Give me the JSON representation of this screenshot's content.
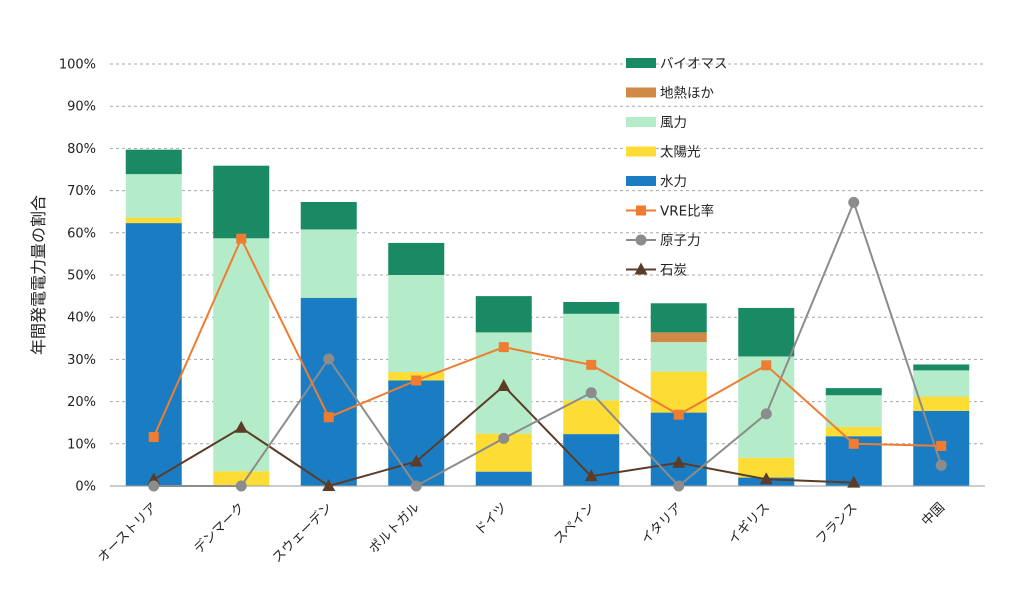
{
  "chart_data": {
    "type": "bar",
    "stacked": true,
    "ylabel": "年間発電電力量の割合",
    "ylim": [
      0,
      100
    ],
    "ytick_labels": [
      "0%",
      "10%",
      "20%",
      "30%",
      "40%",
      "50%",
      "60%",
      "70%",
      "80%",
      "90%",
      "100%"
    ],
    "grid": true,
    "legend_position": "top-right",
    "categories": [
      "オーストリア",
      "デンマーク",
      "スウェーデン",
      "ポルトガル",
      "ドイツ",
      "スペイン",
      "イタリア",
      "イギリス",
      "フランス",
      "中国"
    ],
    "bar_series": [
      {
        "name": "水力",
        "color": "#1a7dc4",
        "values": [
          62.3,
          0.0,
          44.6,
          25.0,
          3.4,
          12.3,
          17.4,
          2.0,
          11.8,
          17.8
        ]
      },
      {
        "name": "太陽光",
        "color": "#fddc35",
        "values": [
          1.3,
          3.5,
          0.0,
          2.0,
          9.0,
          8.0,
          9.7,
          4.7,
          2.2,
          3.4
        ]
      },
      {
        "name": "風力",
        "color": "#b4ebc8",
        "values": [
          10.3,
          55.2,
          16.2,
          23.0,
          24.0,
          20.5,
          7.0,
          24.0,
          7.5,
          6.2
        ]
      },
      {
        "name": "地熱ほか",
        "color": "#d18a45",
        "values": [
          0.0,
          0.0,
          0.0,
          0.0,
          0.0,
          0.0,
          2.3,
          0.0,
          0.0,
          0.0
        ]
      },
      {
        "name": "バイオマス",
        "color": "#1a8a64",
        "values": [
          5.8,
          17.2,
          6.5,
          7.6,
          8.6,
          2.8,
          6.9,
          11.5,
          1.7,
          1.4
        ]
      }
    ],
    "line_series": [
      {
        "name": "VRE比率",
        "color": "#ee7d31",
        "marker": "square",
        "values": [
          11.6,
          58.6,
          16.3,
          25.0,
          32.9,
          28.7,
          16.9,
          28.6,
          10.0,
          9.5
        ]
      },
      {
        "name": "原子力",
        "color": "#8c8c8c",
        "marker": "circle",
        "values": [
          0.0,
          0.0,
          30.1,
          0.0,
          11.3,
          22.1,
          0.0,
          17.1,
          67.2,
          4.9
        ]
      },
      {
        "name": "石炭",
        "color": "#5c3c28",
        "marker": "triangle",
        "values": [
          1.5,
          13.8,
          0.0,
          5.8,
          23.7,
          2.3,
          5.5,
          1.6,
          0.8,
          null
        ]
      }
    ],
    "legend": [
      {
        "name": "バイオマス",
        "kind": "bar",
        "color": "#1a8a64"
      },
      {
        "name": "地熱ほか",
        "kind": "bar",
        "color": "#d18a45"
      },
      {
        "name": "風力",
        "kind": "bar",
        "color": "#b4ebc8"
      },
      {
        "name": "太陽光",
        "kind": "bar",
        "color": "#fddc35"
      },
      {
        "name": "水力",
        "kind": "bar",
        "color": "#1a7dc4"
      },
      {
        "name": "VRE比率",
        "kind": "line",
        "color": "#ee7d31",
        "marker": "square"
      },
      {
        "name": "原子力",
        "kind": "line",
        "color": "#8c8c8c",
        "marker": "circle"
      },
      {
        "name": "石炭",
        "kind": "line",
        "color": "#5c3c28",
        "marker": "triangle"
      }
    ]
  }
}
